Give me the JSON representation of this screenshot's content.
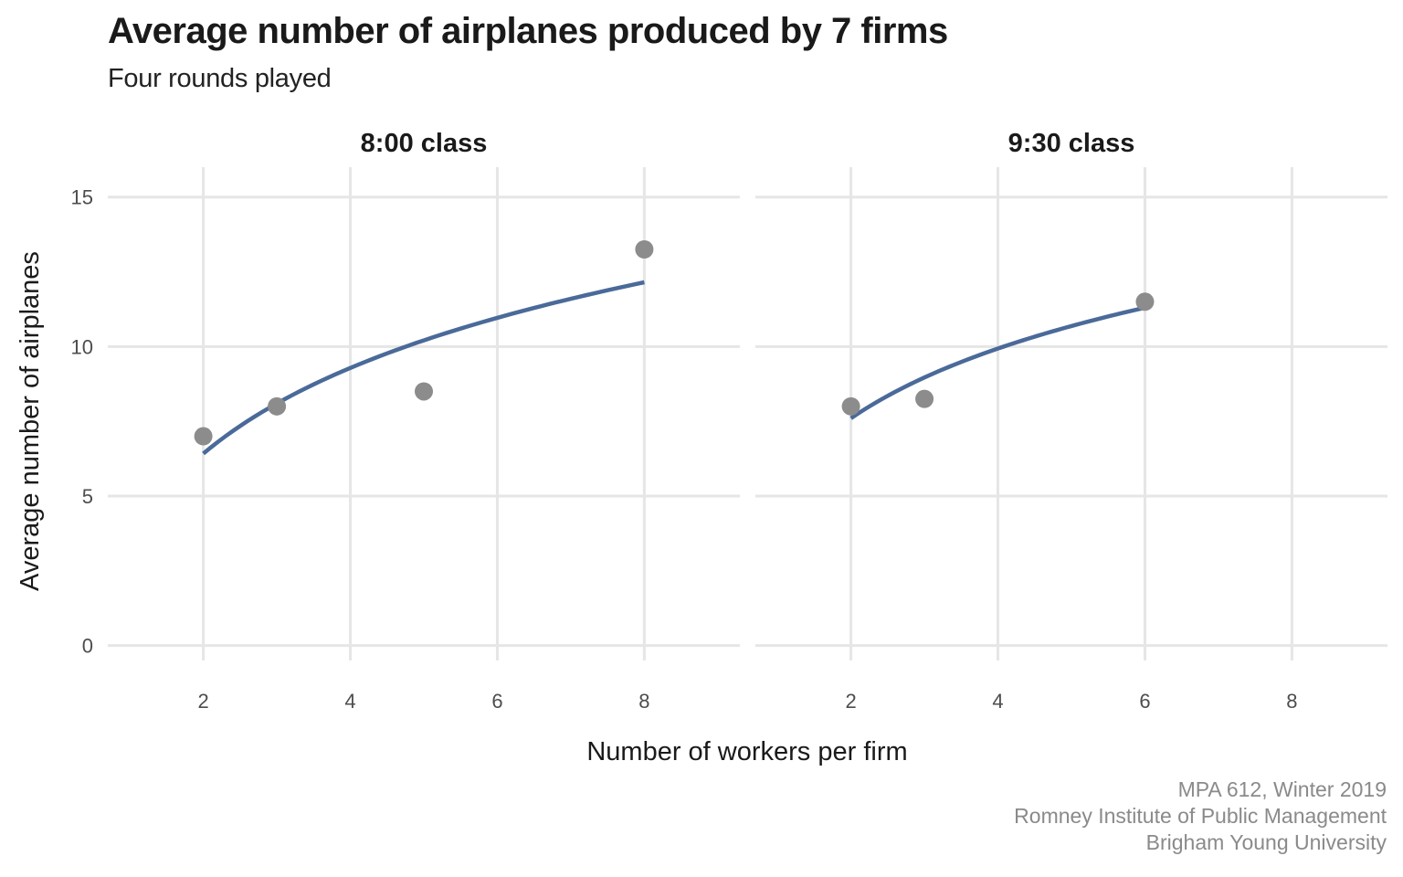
{
  "chart_data": {
    "type": "scatter",
    "title": "Average number of airplanes produced by 7 firms",
    "subtitle": "Four rounds played",
    "xlabel": "Number of workers per firm",
    "ylabel": "Average number of airplanes",
    "xlim": [
      0.7,
      9.3
    ],
    "ylim": [
      -0.5,
      16
    ],
    "x_ticks": [
      2,
      4,
      6,
      8
    ],
    "y_ticks": [
      0,
      5,
      10,
      15
    ],
    "grid": true,
    "point_color": "#8c8c8c",
    "line_color": "#4a6a99",
    "panels": [
      {
        "label": "8:00 class",
        "points": [
          {
            "x": 2,
            "y": 7.0
          },
          {
            "x": 3,
            "y": 8.0
          },
          {
            "x": 5,
            "y": 8.5
          },
          {
            "x": 8,
            "y": 13.25
          }
        ],
        "fit": {
          "type": "log",
          "x_range": [
            2,
            8
          ],
          "y_start": 6.42,
          "y_end": 12.15
        }
      },
      {
        "label": "9:30 class",
        "points": [
          {
            "x": 2,
            "y": 8.0
          },
          {
            "x": 3,
            "y": 8.25
          },
          {
            "x": 6,
            "y": 11.5
          }
        ],
        "fit": {
          "type": "log",
          "x_range": [
            2,
            6
          ],
          "y_start": 7.6,
          "y_end": 11.3
        }
      }
    ],
    "caption": [
      "MPA 612, Winter 2019",
      "Romney Institute of Public Management",
      "Brigham Young University"
    ]
  }
}
